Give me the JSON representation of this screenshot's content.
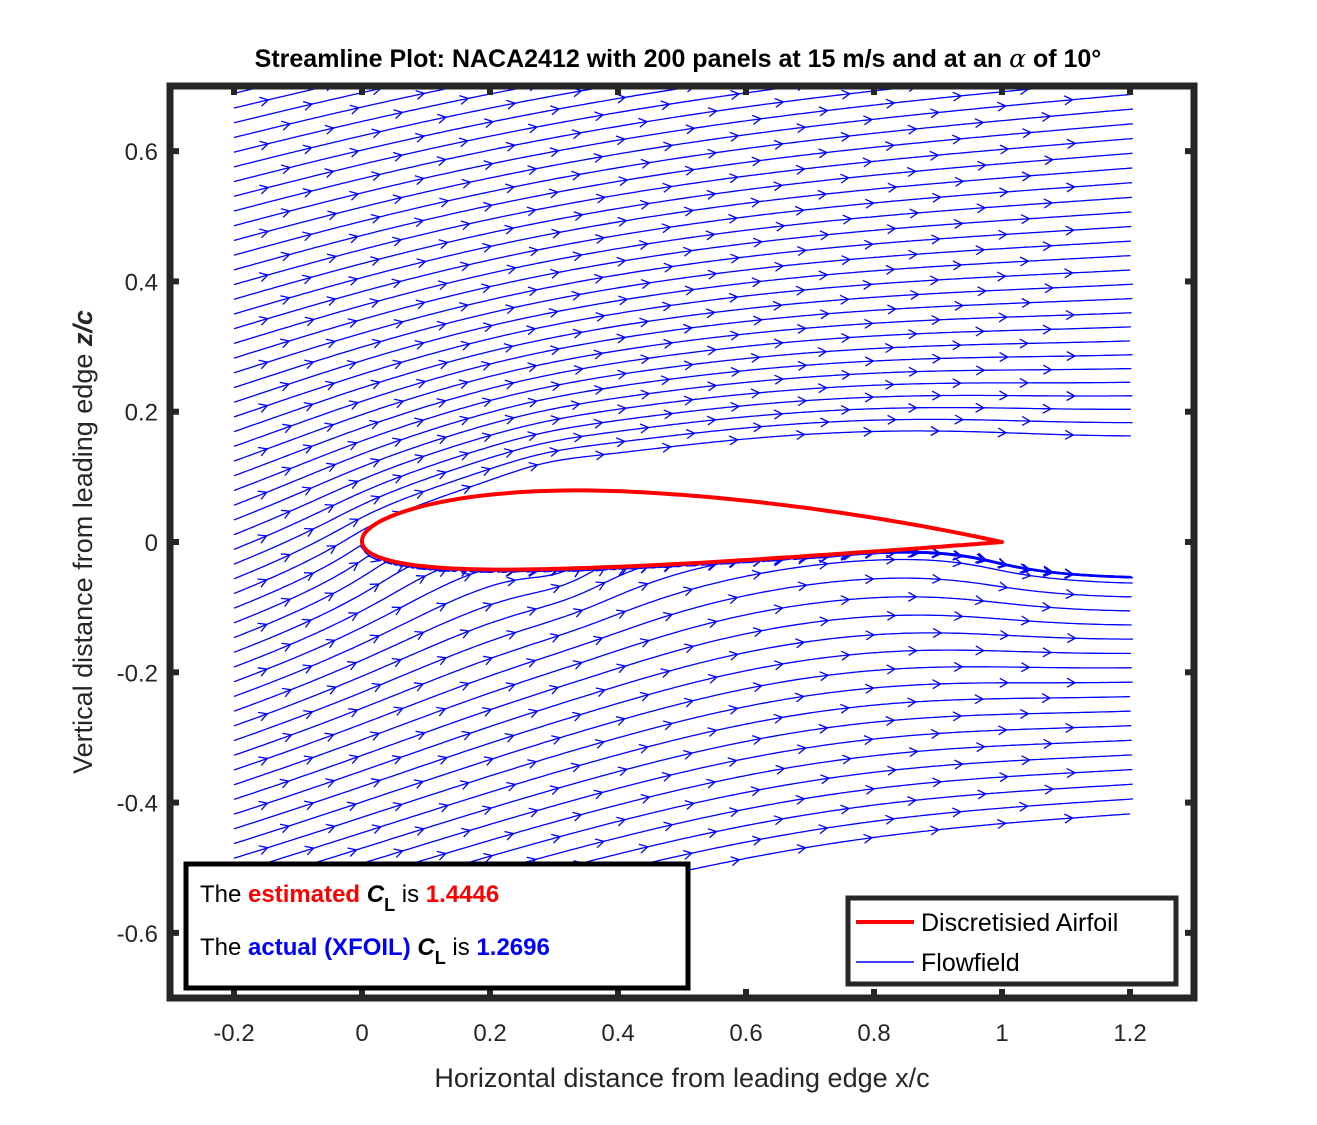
{
  "chart_data": {
    "type": "line",
    "title_prefix": "Streamline Plot: NACA2412 with 200 panels at 15 m/s and at an",
    "title_alpha": "α",
    "title_suffix": "of 10°",
    "xlabel": "Horizontal distance from leading edge x/c",
    "ylabel_prefix": "Vertical distance from leading edge",
    "ylabel_var": "z/c",
    "xlim": [
      -0.3,
      1.3
    ],
    "ylim": [
      -0.7,
      0.7
    ],
    "xticks": [
      "-0.2",
      "0",
      "0.2",
      "0.4",
      "0.6",
      "0.8",
      "1",
      "1.2"
    ],
    "xtick_values": [
      -0.2,
      0,
      0.2,
      0.4,
      0.6,
      0.8,
      1.0,
      1.2
    ],
    "yticks": [
      "-0.6",
      "-0.4",
      "-0.2",
      "0",
      "0.2",
      "0.4",
      "0.6"
    ],
    "ytick_values": [
      -0.6,
      -0.4,
      -0.2,
      0,
      0.2,
      0.4,
      0.6
    ],
    "grid": false,
    "legend_position": "bottom-right",
    "series": [
      {
        "name": "Discretisied Airfoil",
        "color": "#ff0000",
        "airfoil": "NACA2412",
        "chord": [
          0,
          1
        ]
      },
      {
        "name": "Flowfield",
        "color": "#0000ff",
        "x_range": [
          -0.2,
          1.2
        ],
        "y_range": [
          -0.7,
          0.7
        ]
      }
    ],
    "annotation": {
      "line1": {
        "prefix": "The",
        "highlight": "estimated",
        "symbol": "C",
        "subscript": "L",
        "mid": "is",
        "value": "1.4446",
        "color": "#ff0000"
      },
      "line2": {
        "prefix": "The",
        "highlight": "actual (XFOIL)",
        "symbol": "C",
        "subscript": "L",
        "mid": "is",
        "value": "1.2696",
        "color": "#0000ff"
      }
    }
  }
}
